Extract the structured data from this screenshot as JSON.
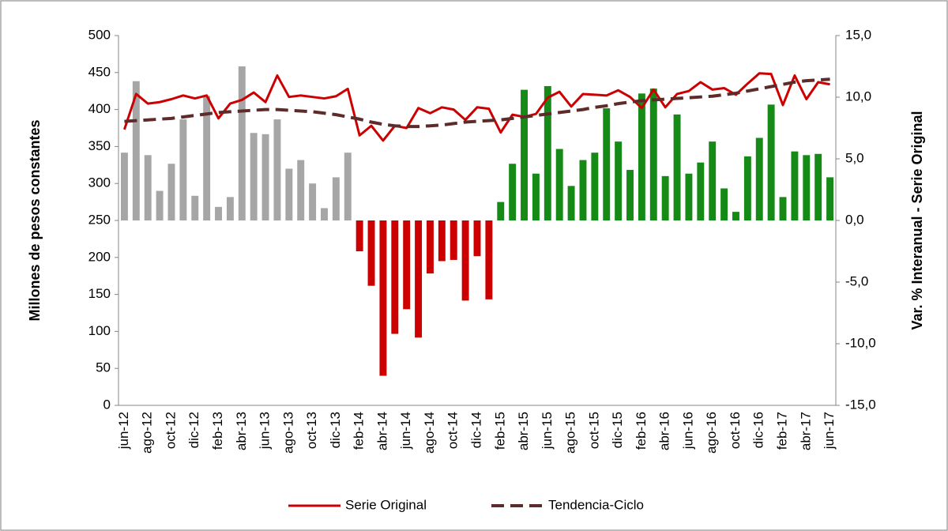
{
  "chart_data": {
    "type": "bar-line",
    "y_label": "Millones de pesos constantes",
    "y2_label": "Var. % Interanual - Serie Original",
    "categories": [
      "jun-12",
      null,
      "ago-12",
      null,
      "oct-12",
      null,
      "dic-12",
      null,
      "feb-13",
      null,
      "abr-13",
      null,
      "jun-13",
      null,
      "ago-13",
      null,
      "oct-13",
      null,
      "dic-13",
      null,
      "feb-14",
      null,
      "abr-14",
      null,
      "jun-14",
      null,
      "ago-14",
      null,
      "oct-14",
      null,
      "dic-14",
      null,
      "feb-15",
      null,
      "abr-15",
      null,
      "jun-15",
      null,
      "ago-15",
      null,
      "oct-15",
      null,
      "dic-15",
      null,
      "feb-16",
      null,
      "abr-16",
      null,
      "jun-16",
      null,
      "ago-16",
      null,
      "oct-16",
      null,
      "dic-16",
      null,
      "feb-17",
      null,
      "abr-17",
      null,
      "jun-17"
    ],
    "ylim": [
      0,
      500
    ],
    "yticks": [
      0,
      50,
      100,
      150,
      200,
      250,
      300,
      350,
      400,
      450,
      500
    ],
    "y2lim": [
      -15,
      15
    ],
    "y2ticks": [
      {
        "value": -15,
        "label": "-15,0"
      },
      {
        "value": -10,
        "label": "-10,0"
      },
      {
        "value": -5,
        "label": "-5,0"
      },
      {
        "value": 0,
        "label": "0,0"
      },
      {
        "value": 5,
        "label": "5,0"
      },
      {
        "value": 10,
        "label": "10,0"
      },
      {
        "value": 15,
        "label": "15,0"
      }
    ],
    "bars": {
      "axis": "y2",
      "values": [
        5.5,
        11.3,
        5.3,
        2.4,
        4.6,
        8.2,
        2.0,
        10.1,
        1.1,
        1.9,
        12.5,
        7.1,
        7.0,
        8.2,
        4.2,
        4.9,
        3.0,
        1.0,
        3.5,
        5.5,
        -2.5,
        -5.3,
        -12.6,
        -9.2,
        -7.2,
        -9.5,
        -4.3,
        -3.3,
        -3.2,
        -6.5,
        -2.9,
        -6.4,
        1.5,
        4.6,
        10.6,
        3.8,
        10.9,
        5.8,
        2.8,
        4.9,
        5.5,
        9.1,
        6.4,
        4.1,
        10.3,
        10.7,
        3.6,
        8.6,
        3.8,
        4.7,
        6.4,
        2.6,
        0.7,
        5.2,
        6.7,
        9.4,
        1.9,
        5.6,
        5.3,
        5.4,
        3.5
      ],
      "colors": [
        "#a6a6a6",
        "#a6a6a6",
        "#a6a6a6",
        "#a6a6a6",
        "#a6a6a6",
        "#a6a6a6",
        "#a6a6a6",
        "#a6a6a6",
        "#a6a6a6",
        "#a6a6a6",
        "#a6a6a6",
        "#a6a6a6",
        "#a6a6a6",
        "#a6a6a6",
        "#a6a6a6",
        "#a6a6a6",
        "#a6a6a6",
        "#a6a6a6",
        "#a6a6a6",
        "#a6a6a6",
        "#cc0000",
        "#cc0000",
        "#cc0000",
        "#cc0000",
        "#cc0000",
        "#cc0000",
        "#cc0000",
        "#cc0000",
        "#cc0000",
        "#cc0000",
        "#cc0000",
        "#cc0000",
        "#168a16",
        "#168a16",
        "#168a16",
        "#168a16",
        "#168a16",
        "#168a16",
        "#168a16",
        "#168a16",
        "#168a16",
        "#168a16",
        "#168a16",
        "#168a16",
        "#168a16",
        "#168a16",
        "#168a16",
        "#168a16",
        "#168a16",
        "#168a16",
        "#168a16",
        "#168a16",
        "#168a16",
        "#168a16",
        "#168a16",
        "#168a16",
        "#168a16",
        "#168a16",
        "#168a16",
        "#168a16",
        "#168a16"
      ]
    },
    "series": [
      {
        "name": "Serie Original",
        "color": "#cc0000",
        "dashed": false,
        "values": [
          373,
          421,
          408,
          410,
          414,
          419,
          415,
          419,
          388,
          408,
          413,
          423,
          410,
          446,
          417,
          419,
          417,
          415,
          418,
          428,
          365,
          378,
          358,
          378,
          375,
          402,
          395,
          403,
          400,
          386,
          403,
          401,
          369,
          393,
          390,
          394,
          416,
          424,
          404,
          421,
          420,
          419,
          426,
          417,
          402,
          427,
          403,
          421,
          425,
          437,
          427,
          429,
          420,
          435,
          449,
          448,
          406,
          446,
          414,
          437,
          434
        ]
      },
      {
        "name": "Tendencia-Ciclo",
        "color": "#5e2b2b",
        "dashed": true,
        "values": [
          384,
          385,
          386,
          387,
          388,
          390,
          392,
          394,
          396,
          397,
          398,
          399,
          400,
          400,
          399,
          398,
          397,
          395,
          393,
          390,
          387,
          383,
          380,
          378,
          377,
          377,
          378,
          379,
          381,
          383,
          384,
          385,
          386,
          388,
          390,
          392,
          394,
          396,
          398,
          400,
          403,
          405,
          408,
          410,
          412,
          413,
          414,
          415,
          416,
          417,
          418,
          420,
          422,
          425,
          428,
          431,
          434,
          437,
          439,
          440,
          441
        ]
      }
    ]
  }
}
